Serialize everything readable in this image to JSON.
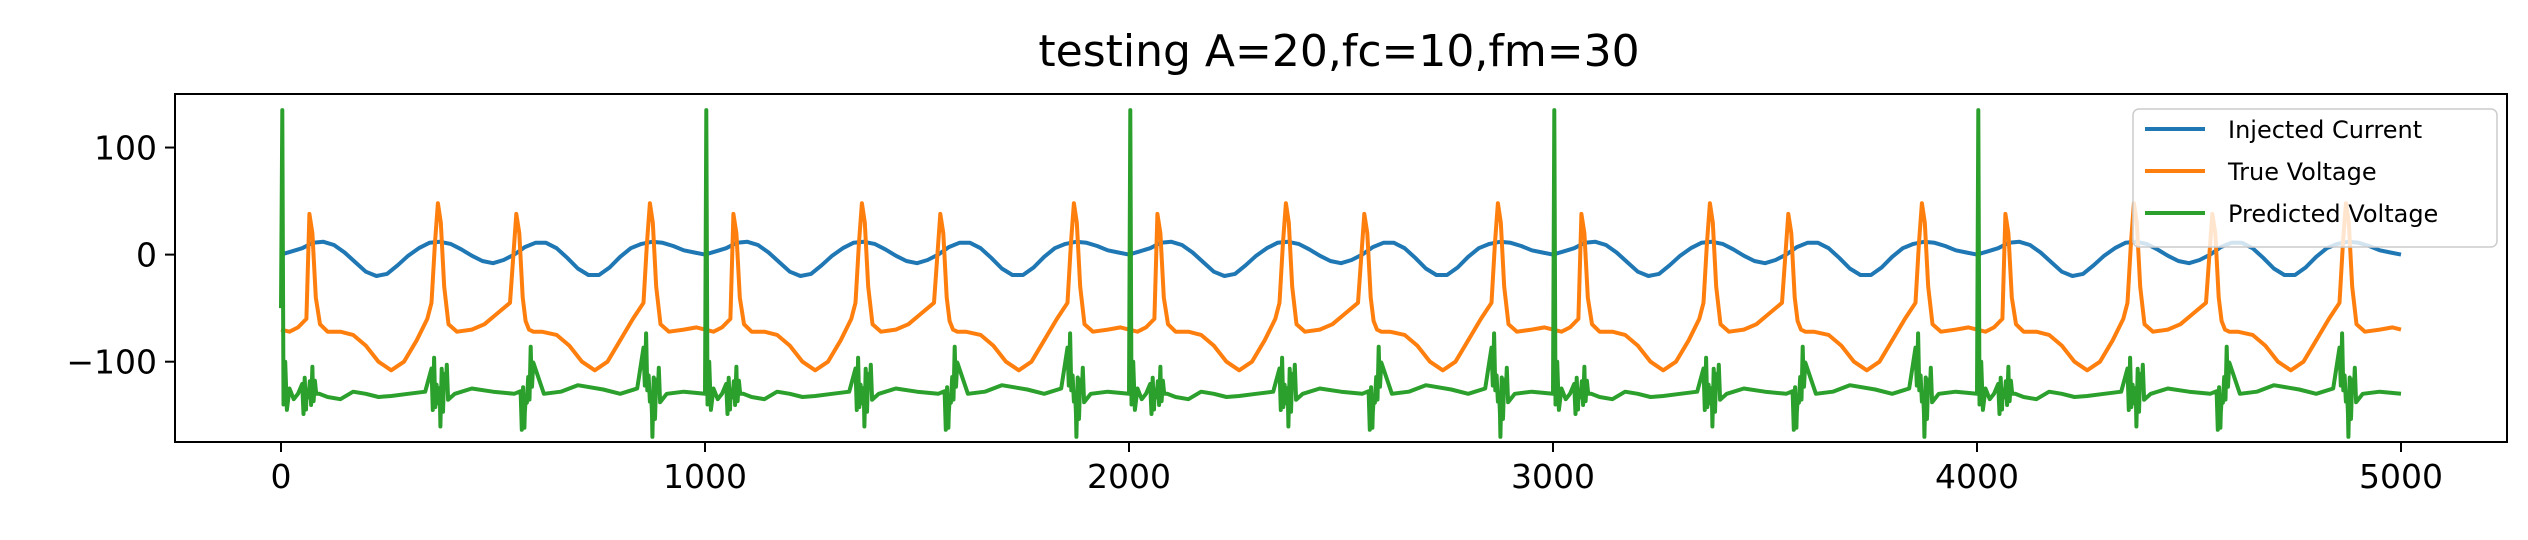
{
  "chart_data": {
    "type": "line",
    "title": "testing A=20,fc=10,fm=30",
    "xlabel": "",
    "ylabel": "",
    "xlim": [
      -250,
      5250
    ],
    "ylim": [
      -175,
      150
    ],
    "xticks": [
      0,
      1000,
      2000,
      3000,
      4000,
      5000
    ],
    "xtick_labels": [
      "0",
      "1000",
      "2000",
      "3000",
      "4000",
      "5000"
    ],
    "yticks": [
      -100,
      0,
      100
    ],
    "ytick_labels": [
      "−100",
      "0",
      "100"
    ],
    "grid": false,
    "legend_position": "top-right",
    "series": [
      {
        "name": "Injected Current",
        "color": "#1f77b4",
        "x": [
          0,
          25,
          50,
          75,
          100,
          125,
          150,
          175,
          200,
          225,
          250,
          275,
          300,
          325,
          350,
          375,
          400,
          425,
          450,
          475,
          500,
          525,
          550,
          575,
          600,
          625,
          650,
          675,
          700,
          725,
          750,
          775,
          800,
          825,
          850,
          875,
          900,
          925,
          950,
          975,
          1000
        ],
        "values": [
          0,
          3,
          6,
          11,
          12,
          9,
          2,
          -7,
          -16,
          -20,
          -18,
          -10,
          -1,
          6,
          11,
          12,
          10,
          5,
          -1,
          -6,
          -8,
          -5,
          0,
          7,
          11,
          11,
          6,
          -3,
          -13,
          -19,
          -19,
          -12,
          -2,
          6,
          10,
          12,
          11,
          8,
          4,
          2,
          0
        ],
        "period": 1000,
        "x_end": 5000
      },
      {
        "name": "True Voltage",
        "color": "#ff7f0e",
        "x": [
          0,
          20,
          40,
          60,
          67,
          74,
          82,
          92,
          110,
          140,
          170,
          200,
          230,
          260,
          290,
          320,
          345,
          355,
          363,
          370,
          377,
          385,
          395,
          415,
          450,
          480,
          510,
          540,
          555,
          562,
          570,
          577,
          585,
          595,
          615,
          650,
          680,
          710,
          740,
          770,
          800,
          830,
          855,
          863,
          870,
          877,
          885,
          895,
          915,
          950,
          980,
          1000
        ],
        "values": [
          -70,
          -72,
          -68,
          -60,
          38,
          20,
          -40,
          -65,
          -72,
          -72,
          -75,
          -85,
          -100,
          -108,
          -100,
          -80,
          -60,
          -45,
          10,
          48,
          30,
          -30,
          -65,
          -72,
          -70,
          -65,
          -55,
          -45,
          38,
          20,
          -40,
          -62,
          -70,
          -72,
          -72,
          -75,
          -85,
          -100,
          -108,
          -100,
          -80,
          -60,
          -45,
          10,
          48,
          30,
          -30,
          -65,
          -72,
          -70,
          -68,
          -70
        ],
        "period": 1000,
        "x_end": 5000
      },
      {
        "name": "Predicted Voltage",
        "color": "#2ca02c",
        "x": [
          0,
          3,
          6,
          10,
          14,
          20,
          30,
          40,
          60,
          75,
          90,
          110,
          140,
          170,
          200,
          230,
          260,
          300,
          340,
          360,
          375,
          390,
          410,
          450,
          500,
          550,
          575,
          590,
          620,
          660,
          700,
          760,
          800,
          840,
          860,
          875,
          890,
          910,
          950,
          1000
        ],
        "values": [
          -50,
          135,
          -140,
          -100,
          -145,
          -125,
          -135,
          -130,
          -133,
          -122,
          -130,
          -133,
          -135,
          -128,
          -130,
          -133,
          -132,
          -130,
          -128,
          -120,
          -140,
          -112,
          -130,
          -125,
          -128,
          -130,
          -148,
          -105,
          -130,
          -128,
          -122,
          -126,
          -130,
          -125,
          -95,
          -150,
          -115,
          -130,
          -128,
          -130
        ],
        "period": 1000,
        "x_end": 5000,
        "jitter_zones": [
          {
            "x": [
              50,
              85
            ],
            "amp": 18
          },
          {
            "x": [
              355,
              395
            ],
            "amp": 26
          },
          {
            "x": [
              565,
              595
            ],
            "amp": 22
          },
          {
            "x": [
              855,
              895
            ],
            "amp": 26
          }
        ]
      }
    ]
  }
}
